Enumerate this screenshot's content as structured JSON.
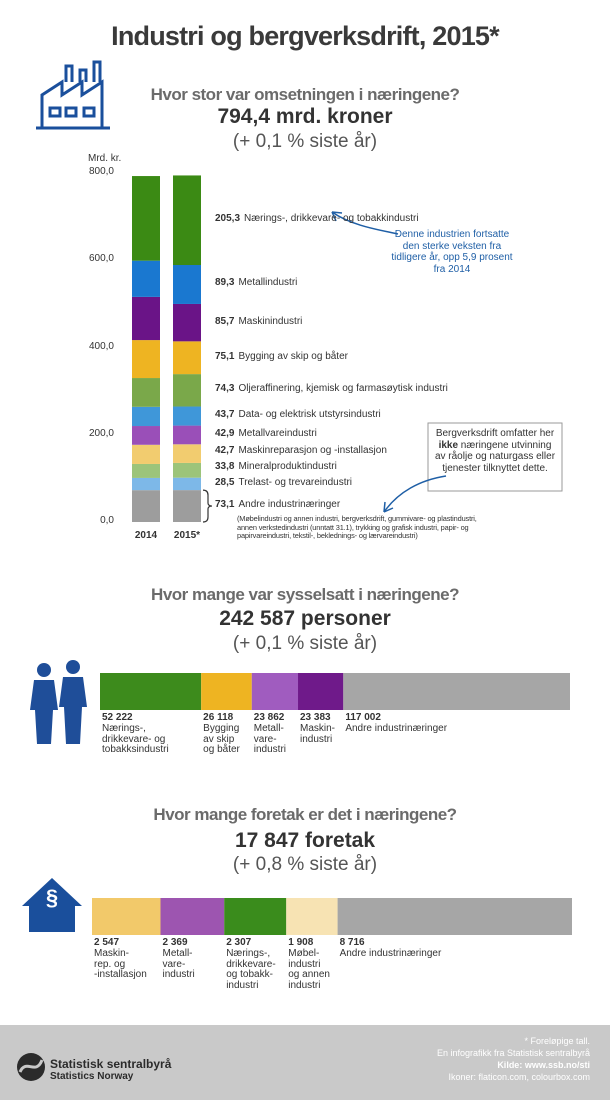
{
  "title": "Industri og bergverksdrift, 2015*",
  "chart_data": [
    {
      "type": "bar",
      "stacked": true,
      "title": "Hvor stor var omsetningen i næringene?",
      "subtitle": "794,4 mrd. kroner",
      "caption": "(+ 0,1 % siste år)",
      "ylabel": "Mrd. kr.",
      "categories": [
        "2014",
        "2015*"
      ],
      "ylim": [
        0,
        800
      ],
      "yticks": [
        {
          "value": 0,
          "label": "0,0"
        },
        {
          "value": 200,
          "label": "200,0"
        },
        {
          "value": 400,
          "label": "400,0"
        },
        {
          "value": 600,
          "label": "600,0"
        },
        {
          "value": 800,
          "label": "800,0"
        }
      ],
      "grid": false,
      "series": [
        {
          "name": "Andre industrinæringer",
          "color": "#9d9d9d",
          "values": [
            73,
            73.1
          ],
          "value_labels": [
            null,
            "73,1"
          ],
          "note": "(Møbelindustri og annen industri, bergverksdrift, gummivare- og plastindustri,\nannen verkstedindustri (unntatt 31.1), trykking og grafisk industri, papir- og\npapirvareindustri, tekstil-, beklednings- og lærvareindustri)"
        },
        {
          "name": "Trelast- og trevareindustri",
          "color": "#7db8e8",
          "values": [
            28,
            28.5
          ],
          "value_labels": [
            null,
            "28,5"
          ]
        },
        {
          "name": "Mineralproduktindustri",
          "color": "#9cc47a",
          "values": [
            32,
            33.8
          ],
          "value_labels": [
            null,
            "33,8"
          ]
        },
        {
          "name": "Maskinreparasjon og -installasjon",
          "color": "#f2cc6f",
          "values": [
            44,
            42.7
          ],
          "value_labels": [
            null,
            "42,7"
          ]
        },
        {
          "name": "Metallvareindustri",
          "color": "#9a4fb8",
          "values": [
            43,
            42.9
          ],
          "value_labels": [
            null,
            "42,9"
          ]
        },
        {
          "name": "Data- og elektrisk utstyrsindustri",
          "color": "#3f97d9",
          "values": [
            44,
            43.7
          ],
          "value_labels": [
            null,
            "43,7"
          ]
        },
        {
          "name": "Oljeraffinering, kjemisk og farmasøytisk industri",
          "color": "#7aa84a",
          "values": [
            66,
            74.3
          ],
          "value_labels": [
            null,
            "74,3"
          ]
        },
        {
          "name": "Bygging av skip og båter",
          "color": "#eeb422",
          "values": [
            87,
            75.1
          ],
          "value_labels": [
            null,
            "75,1"
          ]
        },
        {
          "name": "Maskinindustri",
          "color": "#6a1487",
          "values": [
            99,
            85.7
          ],
          "value_labels": [
            null,
            "85,7"
          ]
        },
        {
          "name": "Metallindustri",
          "color": "#1a78d0",
          "values": [
            83,
            89.3
          ],
          "value_labels": [
            null,
            "89,3"
          ]
        },
        {
          "name": "Nærings-, drikkevare- og tobakkindustri",
          "color": "#3b8a14",
          "values": [
            194,
            205.3
          ],
          "value_labels": [
            null,
            "205,3"
          ]
        }
      ],
      "annotations": [
        {
          "text": "Denne industrien fortsatte\nden sterke veksten fra\ntidligere år, opp 5,9 prosent\nfra 2014"
        },
        {
          "text_parts": [
            "Bergverksdrift omfatter her\n",
            "ikke",
            " næringene utvinning\nav råolje og naturgass eller\ntjenester tilknyttet dette."
          ]
        }
      ]
    },
    {
      "type": "bar",
      "orientation": "horizontal",
      "stacked": true,
      "title": "Hvor mange var sysselsatt i næringene?",
      "subtitle": "242 587 personer",
      "caption": "(+ 0,1 % siste år)",
      "xlim": [
        0,
        242587
      ],
      "series": [
        {
          "name": "Nærings-,\ndrikkevare- og\ntobakksindustri",
          "color": "#3d8b1c",
          "values": [
            52222
          ],
          "value_labels": [
            "52 222"
          ]
        },
        {
          "name": "Bygging\nav skip\nog båter",
          "color": "#eeb422",
          "values": [
            26118
          ],
          "value_labels": [
            "26 118"
          ]
        },
        {
          "name": "Metall-\nvare-\nindustri",
          "color": "#a05cbf",
          "values": [
            23862
          ],
          "value_labels": [
            "23 862"
          ]
        },
        {
          "name": "Maskin-\nindustri",
          "color": "#6f1a8a",
          "values": [
            23383
          ],
          "value_labels": [
            "23 383"
          ]
        },
        {
          "name": "Andre industrinæringer",
          "color": "#a6a6a6",
          "values": [
            117002
          ],
          "value_labels": [
            "117 002"
          ]
        }
      ]
    },
    {
      "type": "bar",
      "orientation": "horizontal",
      "stacked": true,
      "title": "Hvor mange foretak er det i næringene?",
      "subtitle": "17 847 foretak",
      "caption": "(+ 0,8 % siste år)",
      "icon_text": "§",
      "xlim": [
        0,
        17847
      ],
      "series": [
        {
          "name": "Maskin-\nrep. og\n-installasjon",
          "color": "#f2c96a",
          "values": [
            2547
          ],
          "value_labels": [
            "2 547"
          ]
        },
        {
          "name": "Metall-\nvare-\nindustri",
          "color": "#9d55b0",
          "values": [
            2369
          ],
          "value_labels": [
            "2 369"
          ]
        },
        {
          "name": "Nærings-,\ndrikkevare-\nog tobakk-\nindustri",
          "color": "#3a8c1c",
          "values": [
            2307
          ],
          "value_labels": [
            "2 307"
          ]
        },
        {
          "name": "Møbel-\nindustri\nog annen\nindustri",
          "color": "#f7e3b3",
          "values": [
            1908
          ],
          "value_labels": [
            "1 908"
          ]
        },
        {
          "name": "Andre industrinæringer",
          "color": "#a6a6a6",
          "values": [
            8716
          ],
          "value_labels": [
            "8 716"
          ]
        }
      ]
    }
  ],
  "footer": {
    "note": "* Foreløpige tall.",
    "credit": "En infografikk fra Statistisk sentralbyrå",
    "source": "Kilde: www.ssb.no/sti",
    "icons": "Ikoner: flaticon.com, colourbox.com",
    "logo_name": "Statistisk sentralbyrå",
    "logo_name_en": "Statistics Norway"
  }
}
